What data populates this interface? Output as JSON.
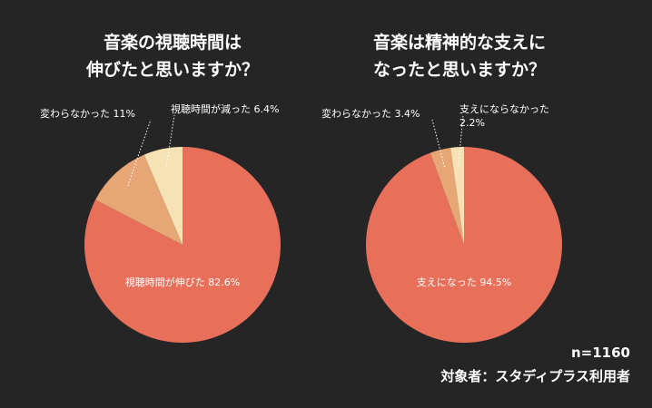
{
  "chart_data": [
    {
      "type": "pie",
      "title": [
        "音楽の視聴時間は",
        "伸びたと思いますか？"
      ],
      "categories": [
        "視聴時間が伸びた",
        "変わらなかった",
        "視聴時間が減った"
      ],
      "values": [
        82.6,
        11,
        6.4
      ],
      "value_labels": [
        "82.6%",
        "11%",
        "6.4%"
      ],
      "colors": [
        "#e8705a",
        "#e6a676",
        "#f6e2b4"
      ]
    },
    {
      "type": "pie",
      "title": [
        "音楽は精神的な支えに",
        "なったと思いますか？"
      ],
      "categories": [
        "支えになった",
        "変わらなかった",
        "支えにならなかった"
      ],
      "values": [
        94.5,
        3.4,
        2.2
      ],
      "value_labels": [
        "94.5%",
        "3.4%",
        "2.2%"
      ],
      "colors": [
        "#e8705a",
        "#e6a676",
        "#f6e2b4"
      ]
    }
  ],
  "footer": {
    "sample": "n=1160",
    "target": "対象者：スタディプラス利用者"
  }
}
